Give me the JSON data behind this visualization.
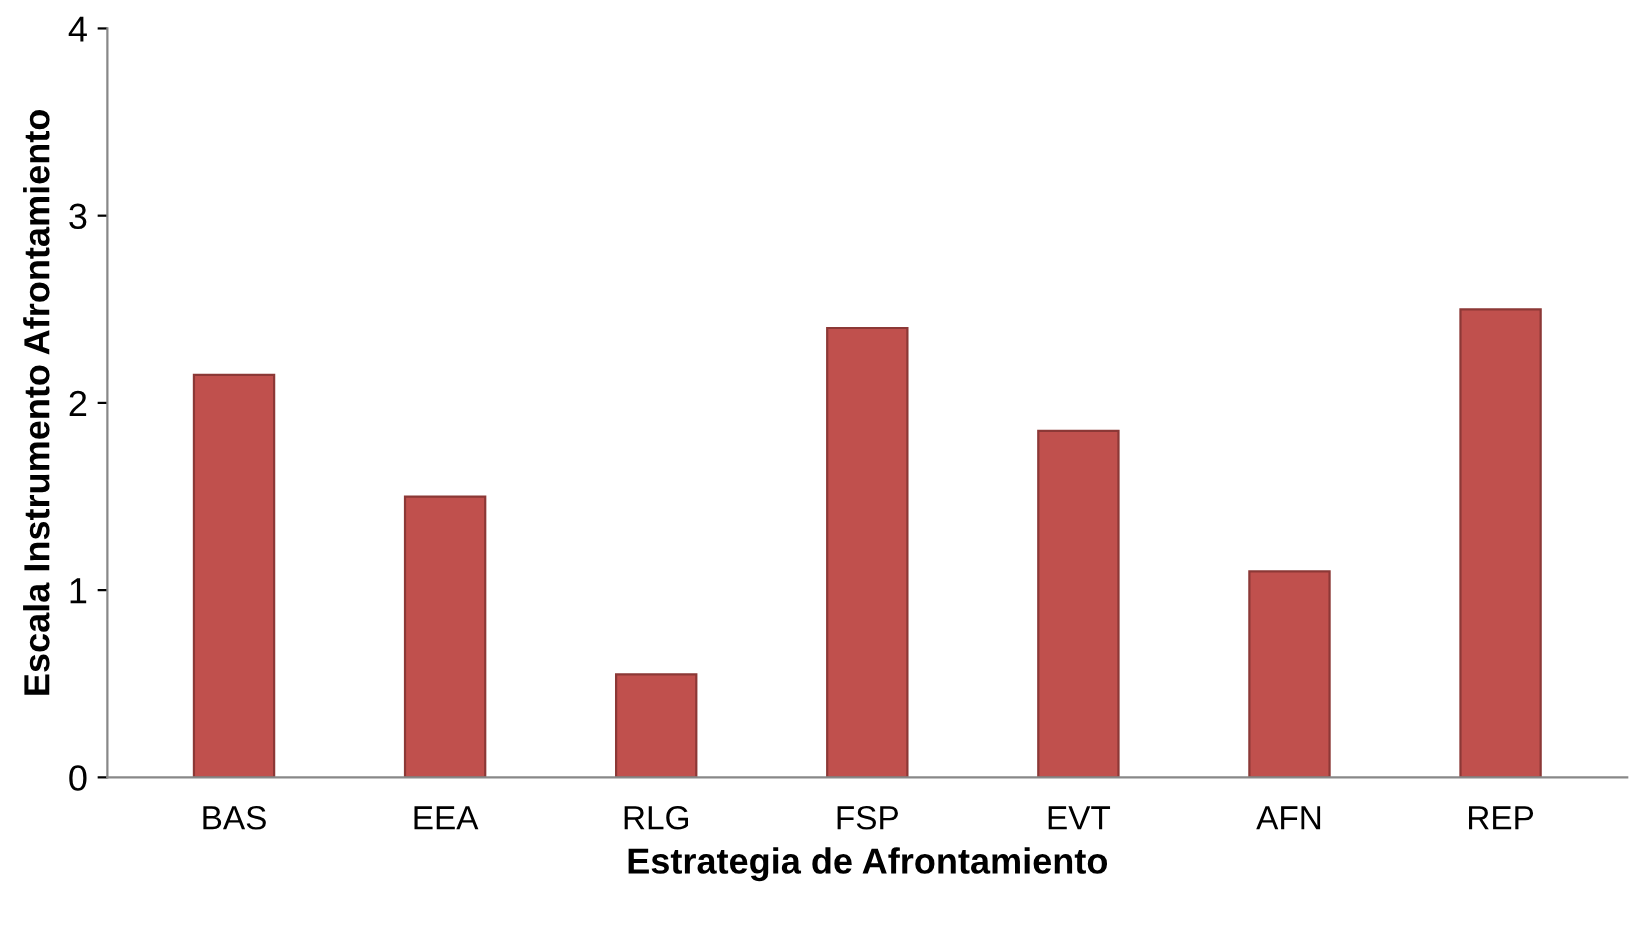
{
  "chart_data": {
    "type": "bar",
    "xlabel": "Estrategia de Afrontamiento",
    "ylabel": "Escala Instrumento Afrontamiento",
    "categories": [
      "BAS",
      "EEA",
      "RLG",
      "FSP",
      "EVT",
      "AFN",
      "REP"
    ],
    "series": [
      {
        "color": "#c0504d",
        "values": [
          2.15,
          1.5,
          0.55,
          2.4,
          1.85,
          1.1,
          2.5
        ]
      }
    ],
    "ylim": [
      0,
      4
    ],
    "yticks": [
      0,
      1,
      2,
      3,
      4
    ],
    "grid": false
  }
}
